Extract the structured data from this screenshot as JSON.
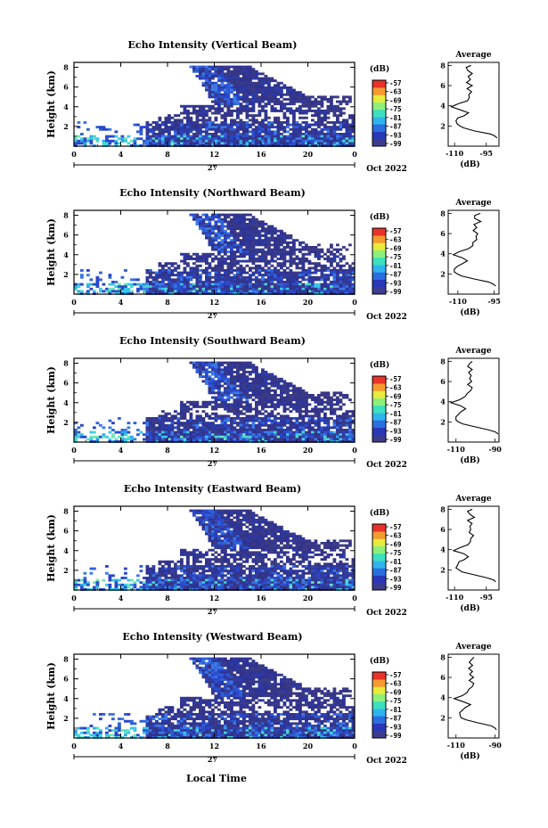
{
  "chart_data": {
    "type": "heatmap",
    "date_label": "Oct 2022",
    "day_label": "27",
    "xlabel_bottom": "Local Time",
    "ylabel": "Height (km)",
    "x_ticks": [
      "0",
      "4",
      "8",
      "12",
      "16",
      "20",
      "0"
    ],
    "y_ticks": [
      "2",
      "4",
      "6",
      "8"
    ],
    "colorbar_unit": "(dB)",
    "colorbar_ticks": [
      "-57",
      "-63",
      "-69",
      "-75",
      "-81",
      "-87",
      "-93",
      "-99"
    ],
    "colorbar_colors": [
      "#3d3d8f",
      "#2a38b8",
      "#2a6ee0",
      "#2fb4ee",
      "#3ce0c0",
      "#8cf07a",
      "#e8ea3c",
      "#f49a2e",
      "#e8322a"
    ],
    "avg_title": "Average",
    "avg_xlabel": "(dB)",
    "panels": [
      {
        "title": "Echo Intensity (Vertical Beam)",
        "avg_x_ticks": [
          "-110",
          "-95"
        ],
        "avg_xlim": [
          -113,
          -89
        ],
        "avg_profile": {
          "height_km": [
            0.8,
            1.0,
            1.2,
            1.5,
            1.8,
            2.0,
            2.2,
            2.5,
            2.8,
            3.0,
            3.3,
            3.6,
            3.9,
            4.2,
            4.5,
            4.8,
            5.1,
            5.4,
            5.7,
            6.0,
            6.3,
            6.6,
            6.9,
            7.2,
            7.5,
            7.8,
            8.0
          ],
          "db": [
            -90,
            -91,
            -93,
            -100,
            -106,
            -108,
            -109,
            -109,
            -108,
            -106,
            -104,
            -107,
            -111,
            -108,
            -104,
            -103,
            -103,
            -102,
            -104,
            -102,
            -104,
            -103,
            -104,
            -102,
            -104,
            -104,
            -102
          ]
        }
      },
      {
        "title": "Echo Intensity (Northward Beam)",
        "avg_x_ticks": [
          "-110",
          "-95"
        ],
        "avg_xlim": [
          -114,
          -93
        ],
        "avg_profile": {
          "height_km": [
            0.8,
            1.0,
            1.2,
            1.5,
            1.8,
            2.0,
            2.2,
            2.5,
            2.8,
            3.0,
            3.3,
            3.6,
            3.9,
            4.2,
            4.5,
            4.8,
            5.1,
            5.4,
            5.7,
            6.0,
            6.3,
            6.6,
            6.9,
            7.2,
            7.5,
            7.8,
            8.0
          ],
          "db": [
            -94,
            -95,
            -97,
            -103,
            -108,
            -110,
            -111,
            -111,
            -110,
            -108,
            -106,
            -108,
            -112,
            -109,
            -106,
            -104,
            -104,
            -102,
            -103,
            -102,
            -104,
            -102,
            -103,
            -101,
            -103,
            -103,
            -101
          ]
        }
      },
      {
        "title": "Echo Intensity (Southward Beam)",
        "avg_x_ticks": [
          "-110",
          "-90"
        ],
        "avg_xlim": [
          -114,
          -88
        ],
        "avg_profile": {
          "height_km": [
            0.8,
            1.0,
            1.2,
            1.5,
            1.8,
            2.0,
            2.2,
            2.5,
            2.8,
            3.0,
            3.3,
            3.6,
            3.9,
            4.2,
            4.5,
            4.8,
            5.1,
            5.4,
            5.7,
            6.0,
            6.3,
            6.6,
            6.9,
            7.2,
            7.5,
            7.8,
            8.0
          ],
          "db": [
            -89,
            -90,
            -93,
            -100,
            -106,
            -109,
            -110,
            -110,
            -109,
            -107,
            -105,
            -108,
            -112,
            -108,
            -105,
            -104,
            -103,
            -102,
            -104,
            -102,
            -103,
            -102,
            -104,
            -102,
            -104,
            -103,
            -102
          ]
        }
      },
      {
        "title": "Echo Intensity (Eastward Beam)",
        "avg_x_ticks": [
          "-110",
          "-95"
        ],
        "avg_xlim": [
          -113,
          -89
        ],
        "avg_profile": {
          "height_km": [
            0.8,
            1.0,
            1.2,
            1.5,
            1.8,
            2.0,
            2.2,
            2.5,
            2.8,
            3.0,
            3.3,
            3.6,
            3.9,
            4.2,
            4.5,
            4.8,
            5.1,
            5.4,
            5.7,
            6.0,
            6.3,
            6.6,
            6.9,
            7.2,
            7.5,
            7.8,
            8.0
          ],
          "db": [
            -90,
            -91,
            -94,
            -101,
            -106,
            -108,
            -109,
            -109,
            -108,
            -106,
            -104,
            -106,
            -110,
            -107,
            -104,
            -102,
            -102,
            -101,
            -103,
            -102,
            -103,
            -102,
            -104,
            -101,
            -103,
            -104,
            -102
          ]
        }
      },
      {
        "title": "Echo Intensity (Westward Beam)",
        "avg_x_ticks": [
          "-110",
          "-90"
        ],
        "avg_xlim": [
          -114,
          -88
        ],
        "avg_profile": {
          "height_km": [
            0.8,
            1.0,
            1.2,
            1.5,
            1.8,
            2.0,
            2.2,
            2.5,
            2.8,
            3.0,
            3.3,
            3.6,
            3.9,
            4.2,
            4.5,
            4.8,
            5.1,
            5.4,
            5.7,
            6.0,
            6.3,
            6.6,
            6.9,
            7.2,
            7.5,
            7.8,
            8.0
          ],
          "db": [
            -89,
            -90,
            -92,
            -99,
            -105,
            -107,
            -108,
            -108,
            -107,
            -105,
            -103,
            -106,
            -111,
            -107,
            -104,
            -103,
            -102,
            -101,
            -103,
            -101,
            -103,
            -102,
            -103,
            -101,
            -103,
            -102,
            -101
          ]
        }
      }
    ]
  }
}
